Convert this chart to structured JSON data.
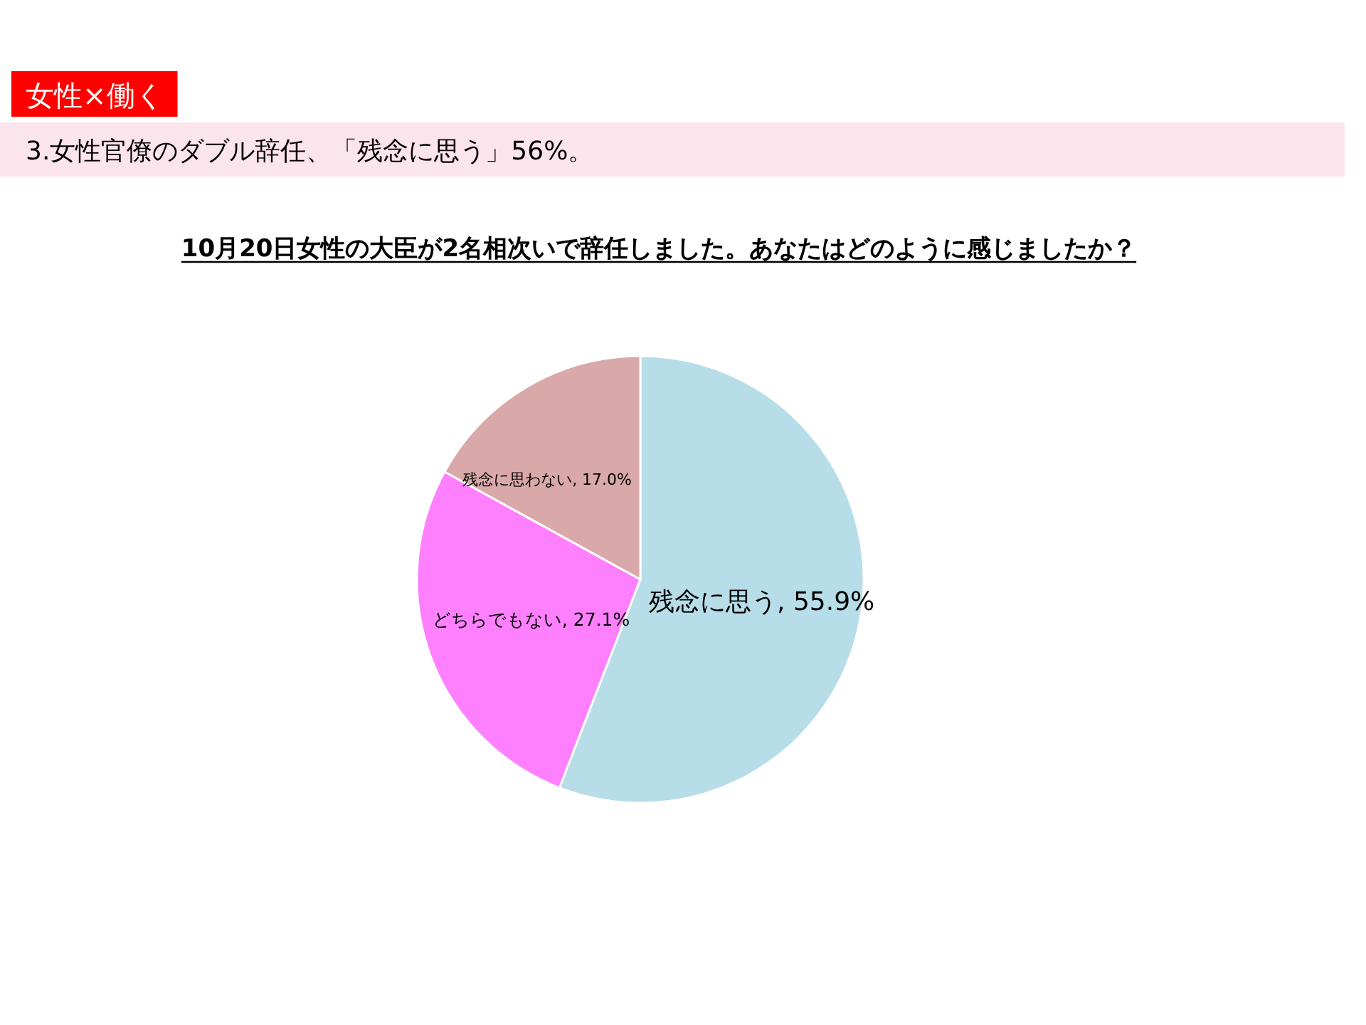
{
  "chart_data": {
    "type": "pie",
    "title": "10月20日女性の大臣が2名相次いで辞任しました。あなたはどのように感じましたか？",
    "subtitle": "3.女性官僚のダブル辞任、「残念に思う」56%。",
    "annotations": [
      "女性×働く"
    ],
    "categories": [
      "残念に思う",
      "どちらでもない",
      "残念に思わない"
    ],
    "values": [
      55.9,
      27.1,
      17.0
    ],
    "value_labels": [
      "55.9%",
      "27.1%",
      "17.0%"
    ],
    "colors": [
      "#b7dde8",
      "#ff80ff",
      "#d9a9a9"
    ],
    "legend": false
  }
}
